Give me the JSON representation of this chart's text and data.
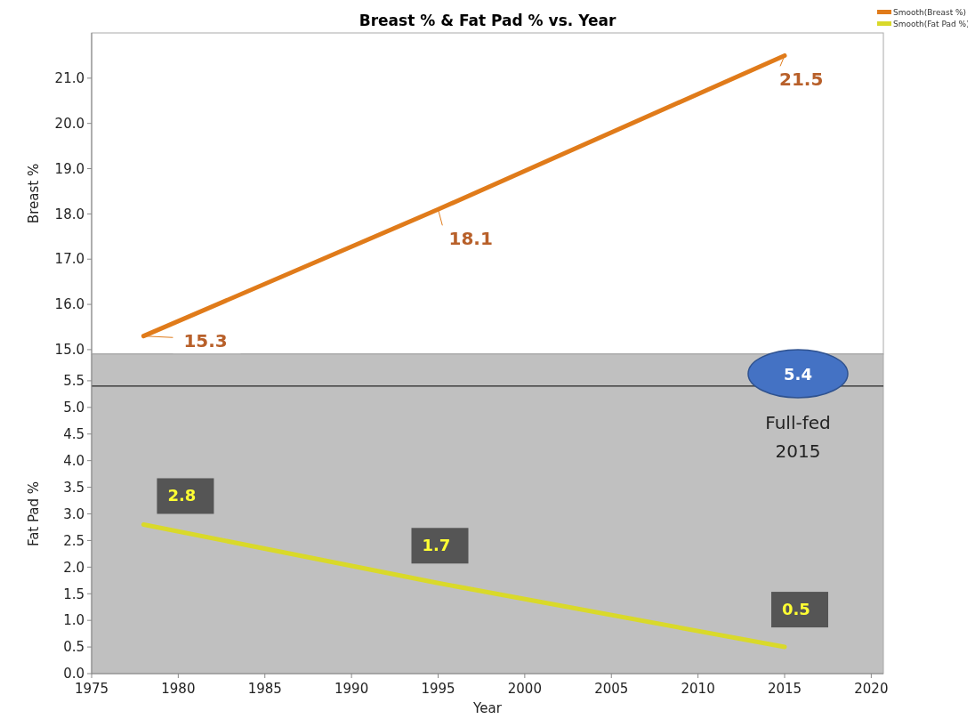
{
  "chart_data": [
    {
      "type": "line",
      "title": "Breast % & Fat Pad % vs. Year",
      "ylabel": "Breast %",
      "x": [
        1978,
        1995,
        2015
      ],
      "xlim": [
        1975,
        2020.7
      ],
      "ylim": [
        14.9,
        22.0
      ],
      "yticks": [
        {
          "value": 15,
          "label": "15.0"
        },
        {
          "value": 16,
          "label": "16.0"
        },
        {
          "value": 17,
          "label": "17.0"
        },
        {
          "value": 18,
          "label": "18.0"
        },
        {
          "value": 19,
          "label": "19.0"
        },
        {
          "value": 20,
          "label": "20.0"
        },
        {
          "value": 21,
          "label": "21.0"
        }
      ],
      "tick_labels": "y",
      "legend": "top right",
      "data_labels": true,
      "series": [
        {
          "name": "Smooth(Breast %)",
          "color": "#e07b1a",
          "values": [
            15.3,
            18.1,
            21.5
          ]
        }
      ]
    },
    {
      "type": "line",
      "xlabel": "Year",
      "ylabel": "Fat Pad %",
      "x": [
        1978,
        1995,
        2015
      ],
      "xlim": [
        1975,
        2020.7
      ],
      "xticks": [
        1975,
        1980,
        1985,
        1990,
        1995,
        2000,
        2005,
        2010,
        2015,
        2020
      ],
      "ylim": [
        0,
        6.0
      ],
      "yticks": [
        {
          "value": 0,
          "label": "0.0"
        },
        {
          "value": 0.5,
          "label": "0.5"
        },
        {
          "value": 1,
          "label": "1.0"
        },
        {
          "value": 1.5,
          "label": "1.5"
        },
        {
          "value": 2,
          "label": "2.0"
        },
        {
          "value": 2.5,
          "label": "2.5"
        },
        {
          "value": 3,
          "label": "3.0"
        },
        {
          "value": 3.5,
          "label": "3.5"
        },
        {
          "value": 4,
          "label": "4.0"
        },
        {
          "value": 4.5,
          "label": "4.5"
        },
        {
          "value": 5,
          "label": "5.0"
        },
        {
          "value": 5.5,
          "label": "5.5"
        }
      ],
      "legend": "top right",
      "data_labels": true,
      "ref_lines": [
        {
          "axis": "y",
          "value": 5.4,
          "label": "5.4",
          "color": "#000000"
        }
      ],
      "annotations": [
        "Full-fed 2015"
      ],
      "series": [
        {
          "name": "Smooth(Fat Pad %)",
          "color": "#d9d92a",
          "values": [
            2.8,
            1.7,
            0.5
          ]
        }
      ]
    }
  ]
}
